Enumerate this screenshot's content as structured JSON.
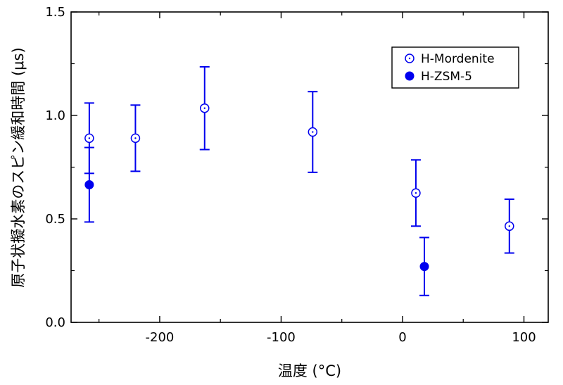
{
  "chart_data": {
    "type": "scatter",
    "xlabel": "温度 (°C)",
    "ylabel": "原子状擬水素のスピン緩和時間 (μs)",
    "xlim": [
      -273,
      120
    ],
    "ylim": [
      0,
      1.5
    ],
    "xticks": [
      -200,
      -100,
      0,
      100
    ],
    "xtick_labels": [
      "-200",
      "-100",
      "0",
      "100"
    ],
    "yticks": [
      0,
      0.5,
      1.0,
      1.5
    ],
    "ytick_labels": [
      "0.0",
      "0.5",
      "1.0",
      "1.5"
    ],
    "grid": false,
    "legend_position": "top-right",
    "marker_color": "#0000ee",
    "series": [
      {
        "name": "H-Mordenite",
        "marker": "open-circle",
        "points": [
          {
            "x": -258,
            "y": 0.89,
            "err": 0.17
          },
          {
            "x": -220,
            "y": 0.89,
            "err": 0.16
          },
          {
            "x": -163,
            "y": 1.035,
            "err": 0.2
          },
          {
            "x": -74,
            "y": 0.92,
            "err": 0.195
          },
          {
            "x": 11,
            "y": 0.625,
            "err": 0.16
          },
          {
            "x": 88,
            "y": 0.465,
            "err": 0.13
          }
        ]
      },
      {
        "name": "H-ZSM-5",
        "marker": "filled-circle",
        "points": [
          {
            "x": -258,
            "y": 0.665,
            "err": 0.18
          },
          {
            "x": 18,
            "y": 0.27,
            "err": 0.14
          }
        ]
      }
    ]
  }
}
